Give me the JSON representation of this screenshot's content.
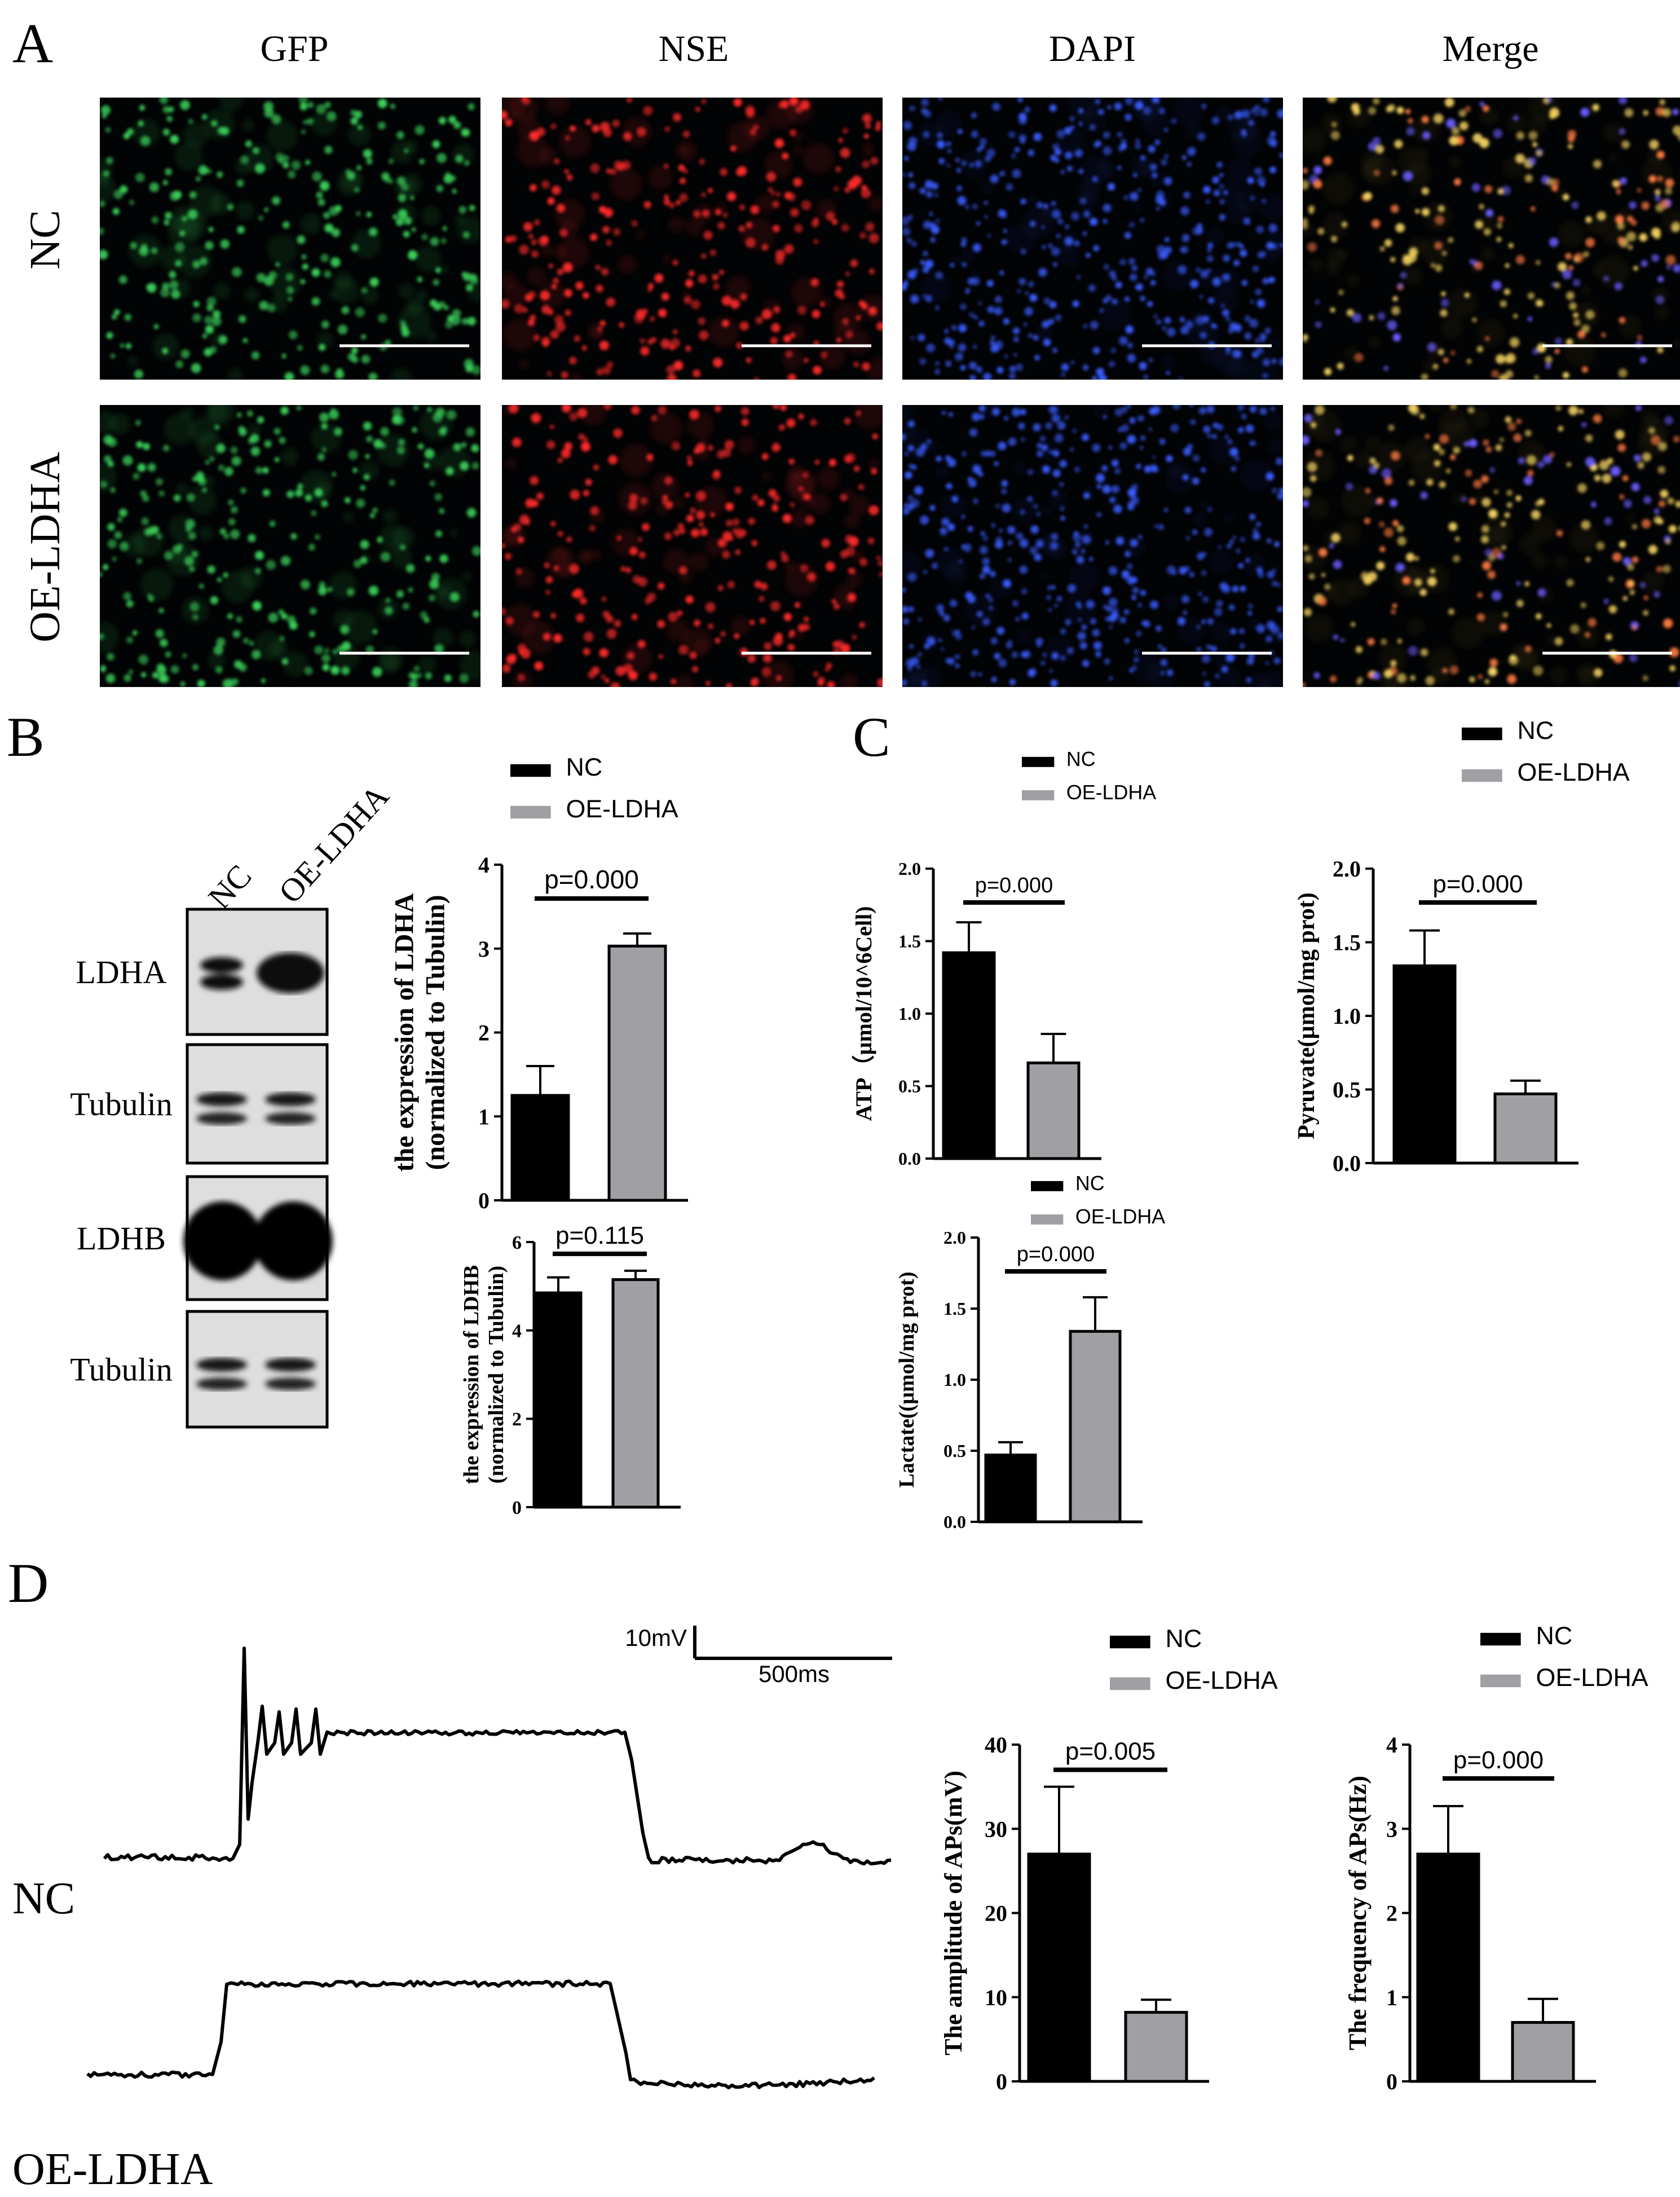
{
  "panels": {
    "a": "A",
    "b": "B",
    "c": "C",
    "d": "D"
  },
  "panel_a": {
    "columns": [
      "GFP",
      "NSE",
      "DAPI",
      "Merge"
    ],
    "rows": [
      "NC",
      "OE-LDHA"
    ],
    "channel_colors": {
      "GFP": "#3bd05a",
      "NSE": "#ff2a2a",
      "DAPI": "#3a5cff",
      "Merge": "#e8c040"
    }
  },
  "western_blot": {
    "lanes": [
      "NC",
      "OE-LDHA"
    ],
    "bands": [
      "LDHA",
      "Tubulin",
      "LDHB",
      "Tubulin"
    ]
  },
  "legend": {
    "nc": "NC",
    "oe": "OE-LDHA"
  },
  "colors": {
    "nc": "#000000",
    "oe": "#a0a0a4"
  },
  "chart_data": [
    {
      "id": "ldha",
      "type": "bar",
      "categories": [
        "NC",
        "OE-LDHA"
      ],
      "values": [
        1.25,
        3.03
      ],
      "errors": [
        0.35,
        0.15
      ],
      "ylabel": [
        "the expression of LDHA",
        "(normalized to Tubulin)"
      ],
      "ylim": [
        0,
        4
      ],
      "yticks": [
        "0",
        "1",
        "2",
        "3",
        "4"
      ],
      "pvalue": "p=0.000",
      "legend": [
        "NC",
        "OE-LDHA"
      ]
    },
    {
      "id": "ldhb",
      "type": "bar",
      "categories": [
        "NC",
        "OE-LDHA"
      ],
      "values": [
        4.85,
        5.15
      ],
      "errors": [
        0.35,
        0.2
      ],
      "ylabel": [
        "the expression of LDHB",
        "(normalized to Tubulin)"
      ],
      "ylim": [
        0,
        6
      ],
      "yticks": [
        "0",
        "2",
        "4",
        "6"
      ],
      "pvalue": "p=0.115"
    },
    {
      "id": "atp",
      "type": "bar",
      "categories": [
        "NC",
        "OE-LDHA"
      ],
      "values": [
        1.42,
        0.66
      ],
      "errors": [
        0.21,
        0.2
      ],
      "ylabel": [
        "ATP（µmol/10^6Cell)"
      ],
      "ylim": [
        0,
        2.0
      ],
      "yticks": [
        "0.0",
        "0.5",
        "1.0",
        "1.5",
        "2.0"
      ],
      "pvalue": "p=0.000",
      "legend": [
        "NC",
        "OE-LDHA"
      ]
    },
    {
      "id": "pyruvate",
      "type": "bar",
      "categories": [
        "NC",
        "OE-LDHA"
      ],
      "values": [
        1.34,
        0.47
      ],
      "errors": [
        0.24,
        0.09
      ],
      "ylabel": [
        "Pyruvate(µmol/mg prot)"
      ],
      "ylim": [
        0,
        2.0
      ],
      "yticks": [
        "0.0",
        "0.5",
        "1.0",
        "1.5",
        "2.0"
      ],
      "pvalue": "p=0.000",
      "legend": [
        "NC",
        "OE-LDHA"
      ]
    },
    {
      "id": "lactate",
      "type": "bar",
      "categories": [
        "NC",
        "OE-LDHA"
      ],
      "values": [
        0.47,
        1.34
      ],
      "errors": [
        0.09,
        0.24
      ],
      "ylabel": [
        "Lactate((µmol/mg prot)"
      ],
      "ylim": [
        0,
        2.0
      ],
      "yticks": [
        "0.0",
        "0.5",
        "1.0",
        "1.5",
        "2.0"
      ],
      "pvalue": "p=0.000",
      "legend": [
        "NC",
        "OE-LDHA"
      ]
    },
    {
      "id": "amplitude",
      "type": "bar",
      "categories": [
        "NC",
        "OE-LDHA"
      ],
      "values": [
        27.0,
        8.2
      ],
      "errors": [
        8.0,
        1.5
      ],
      "ylabel": [
        "The amplitude of APs(mV)"
      ],
      "ylim": [
        0,
        40
      ],
      "yticks": [
        "0",
        "10",
        "20",
        "30",
        "40"
      ],
      "pvalue": "p=0.005",
      "legend": [
        "NC",
        "OE-LDHA"
      ]
    },
    {
      "id": "frequency",
      "type": "bar",
      "categories": [
        "NC",
        "OE-LDHA"
      ],
      "values": [
        2.7,
        0.7
      ],
      "errors": [
        0.57,
        0.28
      ],
      "ylabel": [
        "The frequency of APs(Hz)"
      ],
      "ylim": [
        0,
        4
      ],
      "yticks": [
        "0",
        "1",
        "2",
        "3",
        "4"
      ],
      "pvalue": "p=0.000",
      "legend": [
        "NC",
        "OE-LDHA"
      ]
    }
  ],
  "traces": {
    "rows": [
      "NC",
      "OE-LDHA"
    ],
    "scale_voltage": "10mV",
    "scale_time": "500ms"
  }
}
